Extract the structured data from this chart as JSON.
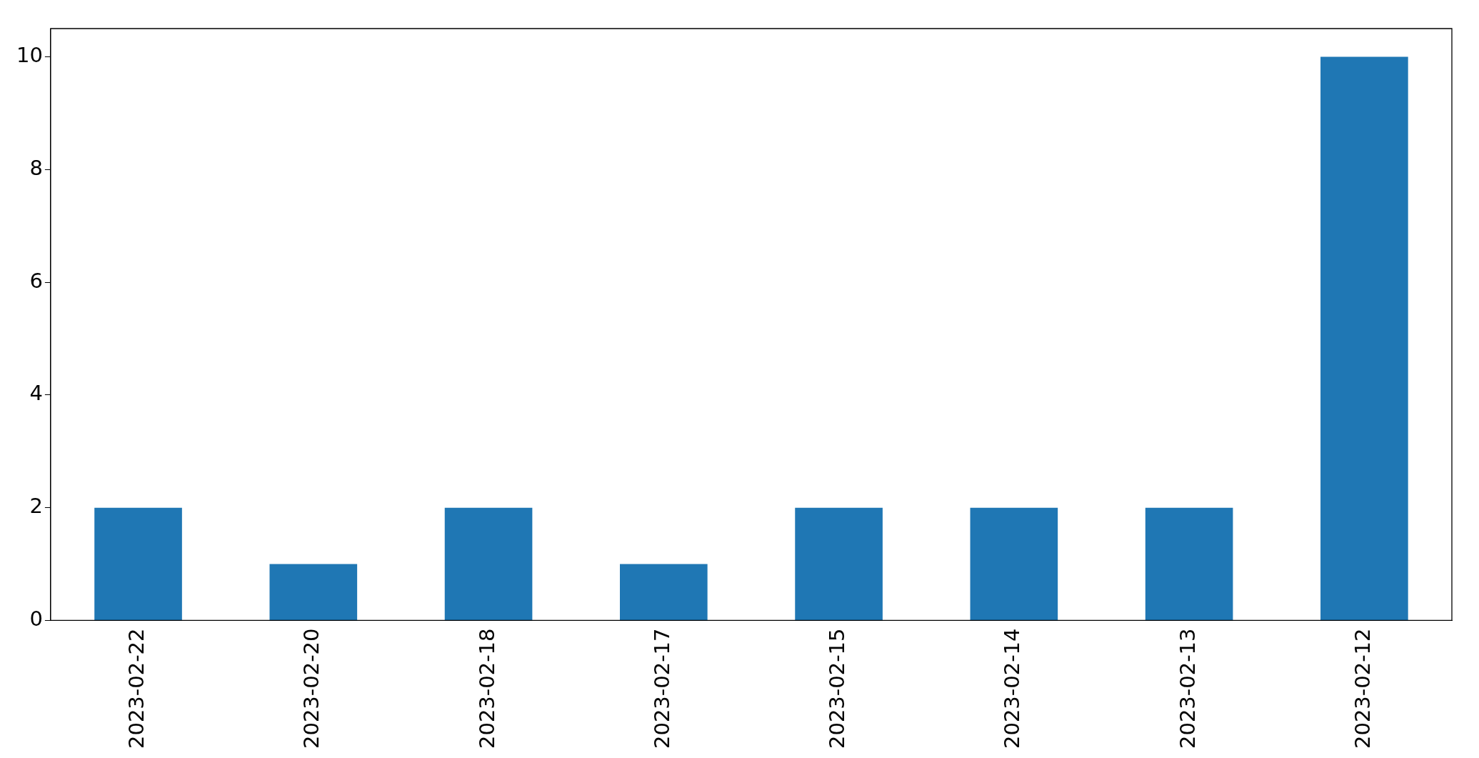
{
  "chart_data": {
    "type": "bar",
    "categories": [
      "2023-02-22",
      "2023-02-20",
      "2023-02-18",
      "2023-02-17",
      "2023-02-15",
      "2023-02-14",
      "2023-02-13",
      "2023-02-12"
    ],
    "values": [
      2,
      1,
      2,
      1,
      2,
      2,
      2,
      10
    ],
    "color": "#1f77b4",
    "ylim": [
      0,
      10.5
    ],
    "yticks": [
      0,
      2,
      4,
      6,
      8,
      10
    ],
    "grid": false,
    "legend": false
  }
}
